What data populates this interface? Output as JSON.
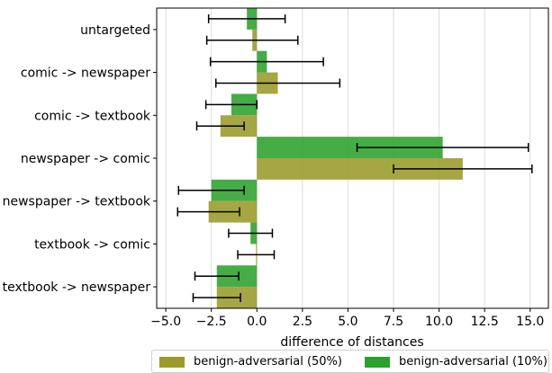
{
  "chart_data": {
    "type": "bar",
    "orientation": "horizontal",
    "categories": [
      "untargeted",
      "comic -> newspaper",
      "comic -> textbook",
      "newspaper -> comic",
      "newspaper -> textbook",
      "textbook -> comic",
      "textbook -> newspaper"
    ],
    "series": [
      {
        "name": "benign-adversarial (10%)",
        "color": "#2ca02c",
        "values": [
          -0.55,
          0.55,
          -1.4,
          10.2,
          -2.5,
          -0.35,
          -2.2
        ],
        "error": [
          2.1,
          3.1,
          1.4,
          4.7,
          1.8,
          1.2,
          1.2
        ]
      },
      {
        "name": "benign-adversarial (50%)",
        "color": "#9a9a2a",
        "values": [
          -0.25,
          1.15,
          -2.0,
          11.3,
          -2.65,
          -0.05,
          -2.2
        ],
        "error": [
          2.5,
          3.4,
          1.3,
          3.8,
          1.7,
          1.0,
          1.3
        ]
      }
    ],
    "xlabel": "difference of distances",
    "ylabel": "",
    "xlim": [
      -5.5,
      16.0
    ],
    "xticks": [
      -5.0,
      -2.5,
      0.0,
      2.5,
      5.0,
      7.5,
      10.0,
      12.5,
      15.0
    ],
    "xtick_labels": [
      "−5.0",
      "−2.5",
      "0.0",
      "2.5",
      "5.0",
      "7.5",
      "10.0",
      "12.5",
      "15.0"
    ],
    "grid": "vertical",
    "legend": "bottom-right"
  },
  "legend": {
    "items": [
      {
        "label": "benign-adversarial (50%)",
        "color": "#9a9a2a"
      },
      {
        "label": "benign-adversarial (10%)",
        "color": "#2ca02c"
      }
    ]
  }
}
